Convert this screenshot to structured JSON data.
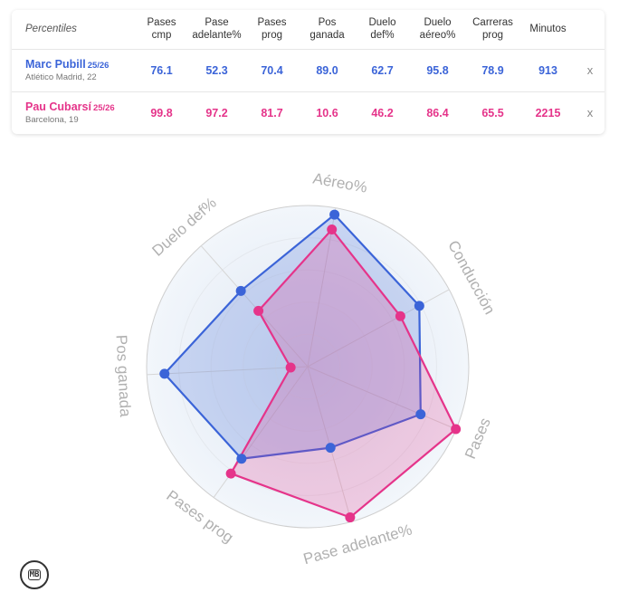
{
  "table": {
    "header_label": "Percentiles",
    "columns": [
      [
        "Pases",
        "cmp"
      ],
      [
        "Pase",
        "adelante%"
      ],
      [
        "Pases",
        "prog"
      ],
      [
        "Pos",
        "ganada"
      ],
      [
        "Duelo",
        "def%"
      ],
      [
        "Duelo",
        "aéreo%"
      ],
      [
        "Carreras",
        "prog"
      ],
      [
        "Minutos",
        ""
      ]
    ],
    "players": [
      {
        "name": "Marc Pubill",
        "season": "25/26",
        "team": "Atlético Madrid, 22",
        "values": [
          "76.1",
          "52.3",
          "70.4",
          "89.0",
          "62.7",
          "95.8",
          "78.9",
          "913"
        ],
        "remove": "x"
      },
      {
        "name": "Pau Cubarsí",
        "season": "25/26",
        "team": "Barcelona, 19",
        "values": [
          "99.8",
          "97.2",
          "81.7",
          "10.6",
          "46.2",
          "86.4",
          "65.5",
          "2215"
        ],
        "remove": "x"
      }
    ]
  },
  "chart_data": {
    "type": "radar",
    "axes": [
      "Aéreo%",
      "Conducción",
      "Pases",
      "Pase adelante%",
      "Pases prog",
      "Pos ganada",
      "Duelo def%"
    ],
    "range": [
      0,
      100
    ],
    "series": [
      {
        "name": "Marc Pubill",
        "color": "#3b64d8",
        "values": [
          95.8,
          78.9,
          76.1,
          52.3,
          70.4,
          89.0,
          62.7
        ]
      },
      {
        "name": "Pau Cubarsí",
        "color": "#e5348a",
        "values": [
          86.4,
          65.5,
          99.8,
          97.2,
          81.7,
          10.6,
          46.2
        ]
      }
    ]
  },
  "logo": {
    "text": "MB"
  }
}
